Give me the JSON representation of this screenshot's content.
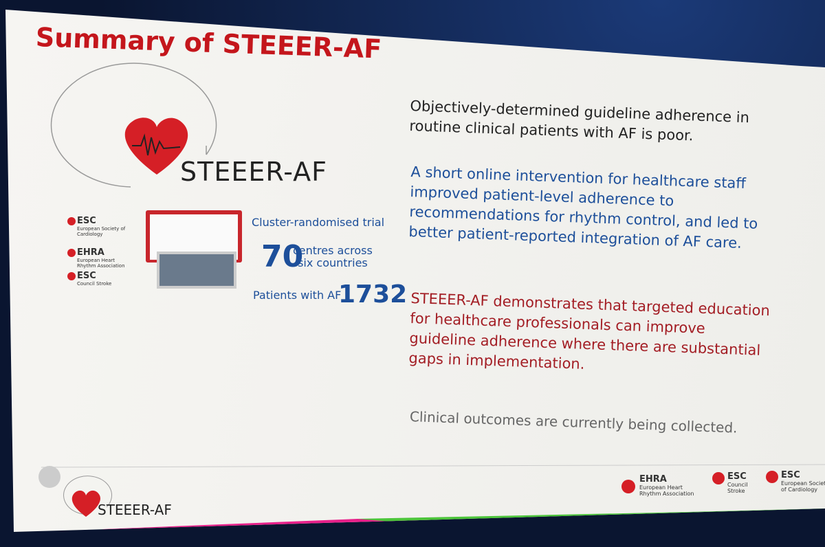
{
  "slide": {
    "title": "Summary of STEEER-AF",
    "logo": "STEEER-AF",
    "side_logos": [
      {
        "name": "ESC",
        "sub": "European Society of Cardiology"
      },
      {
        "name": "EHRA",
        "sub": "European Heart Rhythm Association"
      },
      {
        "name": "ESC",
        "sub": "Council Stroke"
      }
    ],
    "trial": {
      "design": "Cluster-randomised trial",
      "centres": 70,
      "centres_text": [
        "centres across",
        "six countries"
      ],
      "patients_label": "Patients with AF",
      "patients": 1732
    },
    "points": [
      {
        "lines": [
          "Objectively-determined guideline adherence in",
          "routine clinical patients with AF is poor."
        ]
      },
      {
        "lines": [
          "A short online intervention for healthcare staff",
          "improved patient-level adherence to",
          "recommendations for rhythm control, and led to",
          "better patient-reported integration of AF care."
        ]
      },
      {
        "lines": [
          "STEEER-AF demonstrates that targeted education",
          "for healthcare professionals can improve",
          "guideline adherence where there are substantial",
          "gaps in implementation."
        ]
      },
      {
        "lines": [
          "Clinical outcomes are currently being collected."
        ]
      }
    ],
    "footer": {
      "logo": "STEEER-AF",
      "logos": [
        {
          "name": "EHRA",
          "sub": [
            "European Heart",
            "Rhythm Association"
          ]
        },
        {
          "name": "ESC",
          "sub": [
            "Council",
            "Stroke"
          ]
        },
        {
          "name": "ESC",
          "sub": [
            "European Society",
            "of Cardiology"
          ]
        }
      ]
    }
  }
}
